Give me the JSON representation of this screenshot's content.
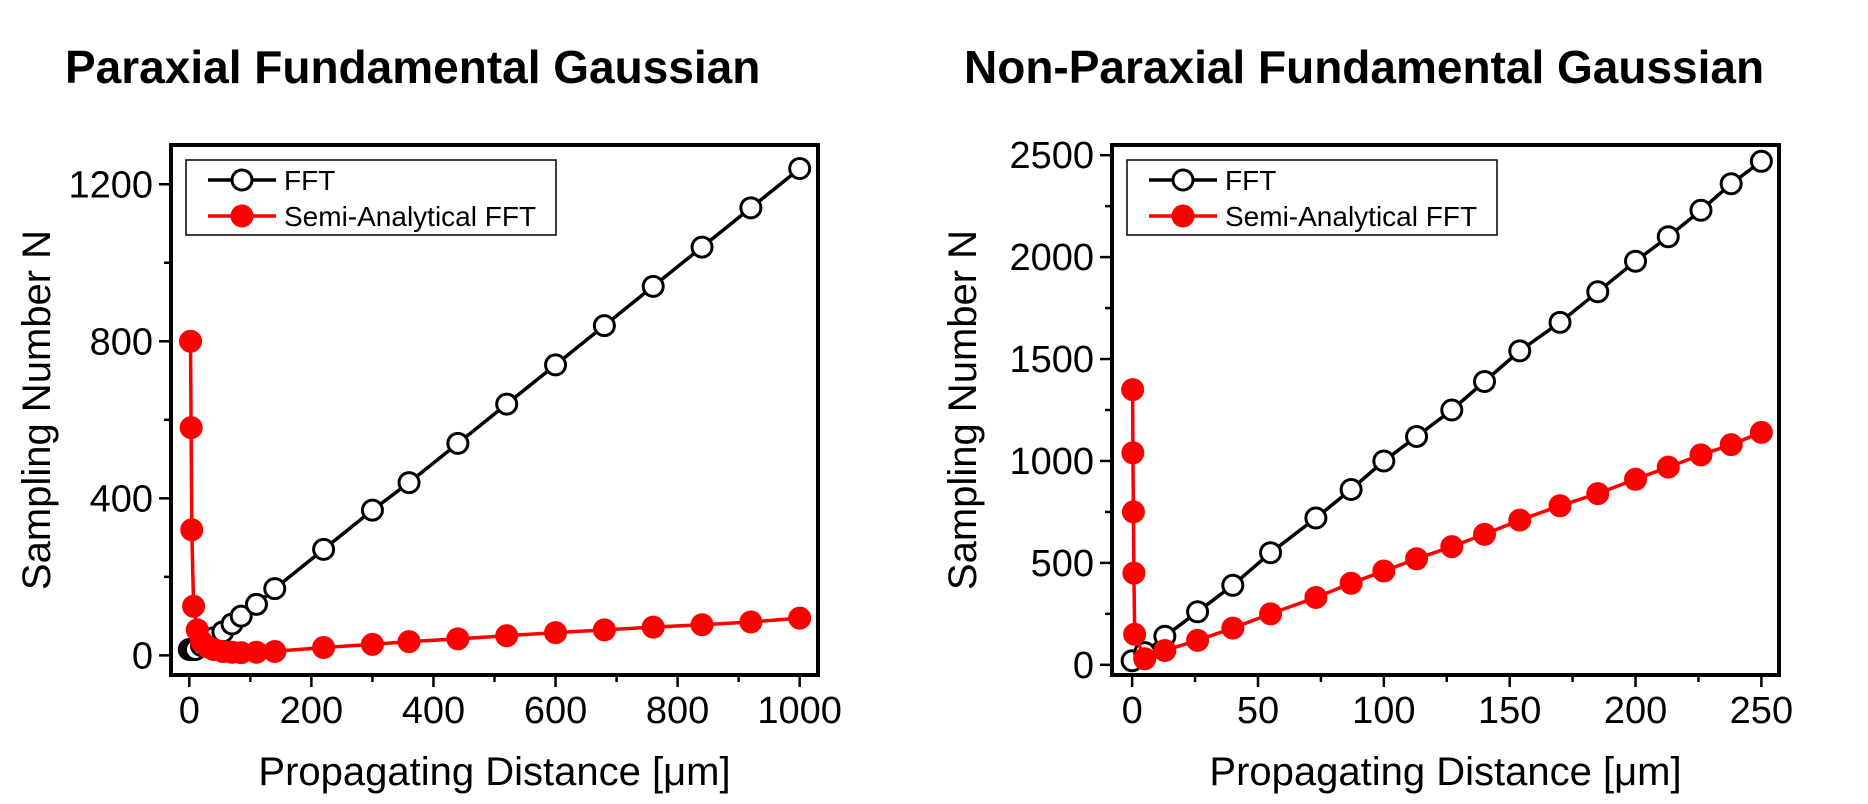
{
  "chart_data": [
    {
      "type": "line",
      "title": "Paraxial Fundamental Gaussian",
      "xlabel": "Propagating Distance [μm]",
      "ylabel": "Sampling Number N",
      "xlim": [
        -30,
        1030
      ],
      "ylim": [
        -50,
        1300
      ],
      "xticks": [
        "0",
        "200",
        "400",
        "600",
        "800",
        "1000"
      ],
      "yticks": [
        "0",
        "400",
        "800",
        "1200"
      ],
      "legend": "top-left",
      "grid": false,
      "series": [
        {
          "name": "FFT",
          "marker": "open-circle",
          "color": "#000000",
          "x": [
            0,
            5,
            10,
            20,
            40,
            55,
            70,
            85,
            110,
            140,
            220,
            300,
            360,
            440,
            520,
            600,
            680,
            760,
            840,
            920,
            1000
          ],
          "y": [
            15,
            15,
            15,
            25,
            45,
            60,
            80,
            100,
            130,
            170,
            270,
            370,
            440,
            540,
            640,
            740,
            840,
            940,
            1040,
            1140,
            1240
          ]
        },
        {
          "name": "Semi-Analytical FFT",
          "marker": "filled-circle",
          "color": "#ff0000",
          "x": [
            2,
            3,
            4,
            7,
            13,
            20,
            30,
            40,
            55,
            70,
            85,
            110,
            140,
            220,
            300,
            360,
            440,
            520,
            600,
            680,
            760,
            840,
            920,
            1000
          ],
          "y": [
            800,
            580,
            320,
            125,
            65,
            35,
            22,
            15,
            10,
            8,
            7,
            8,
            10,
            20,
            28,
            35,
            42,
            50,
            58,
            65,
            72,
            78,
            85,
            95
          ]
        }
      ]
    },
    {
      "type": "line",
      "title": "Non-Paraxial Fundamental Gaussian",
      "xlabel": "Propagating Distance [μm]",
      "ylabel": "Sampling Number N",
      "xlim": [
        -8,
        257
      ],
      "ylim": [
        -50,
        2550
      ],
      "xticks": [
        "0",
        "50",
        "100",
        "150",
        "200",
        "250"
      ],
      "yticks": [
        "0",
        "500",
        "1000",
        "1500",
        "2000",
        "2500"
      ],
      "legend": "top-left",
      "grid": false,
      "series": [
        {
          "name": "FFT",
          "marker": "open-circle",
          "color": "#000000",
          "x": [
            0,
            5,
            13,
            26,
            40,
            55,
            73,
            87,
            100,
            113,
            127,
            140,
            154,
            170,
            185,
            200,
            213,
            226,
            238,
            250
          ],
          "y": [
            20,
            60,
            140,
            260,
            390,
            550,
            720,
            860,
            1000,
            1120,
            1250,
            1390,
            1540,
            1680,
            1830,
            1980,
            2100,
            2230,
            2360,
            2470
          ]
        },
        {
          "name": "Semi-Analytical FFT",
          "marker": "filled-circle",
          "color": "#ff0000",
          "x": [
            0.2,
            0.3,
            0.5,
            0.7,
            1,
            5,
            13,
            26,
            40,
            55,
            73,
            87,
            100,
            113,
            127,
            140,
            154,
            170,
            185,
            200,
            213,
            226,
            238,
            250
          ],
          "y": [
            1350,
            1040,
            750,
            450,
            150,
            30,
            70,
            120,
            180,
            250,
            330,
            400,
            460,
            520,
            580,
            640,
            710,
            780,
            840,
            910,
            970,
            1030,
            1080,
            1140
          ]
        }
      ]
    }
  ]
}
